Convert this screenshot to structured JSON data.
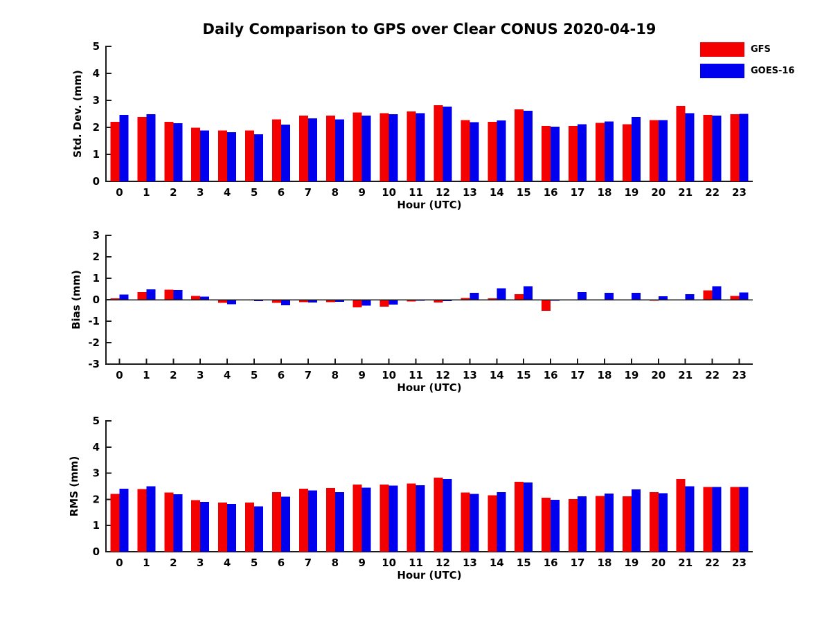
{
  "title": "Daily Comparison to GPS over Clear CONUS 2020-04-19",
  "legend": {
    "position": "top-right",
    "items": [
      {
        "label": "GFS",
        "color": "#f40000"
      },
      {
        "label": "GOES-16",
        "color": "#0000ee"
      }
    ]
  },
  "colors": {
    "gfs": "#f40000",
    "goes16": "#0000ee",
    "axis": "#1a1a1a",
    "background": "#ffffff"
  },
  "chart_data": [
    {
      "type": "bar",
      "name": "std-dev",
      "ylabel": "Std. Dev. (mm)",
      "xlabel": "Hour (UTC)",
      "ylim": [
        0,
        5
      ],
      "yticks": [
        0,
        1,
        2,
        3,
        4,
        5
      ],
      "grid": false,
      "categories": [
        "0",
        "1",
        "2",
        "3",
        "4",
        "5",
        "6",
        "7",
        "8",
        "9",
        "10",
        "11",
        "12",
        "13",
        "14",
        "15",
        "16",
        "17",
        "18",
        "19",
        "20",
        "21",
        "22",
        "23"
      ],
      "series": [
        {
          "name": "GFS",
          "color": "#f40000",
          "values": [
            2.21,
            2.38,
            2.21,
            1.99,
            1.89,
            1.88,
            2.29,
            2.43,
            2.44,
            2.55,
            2.53,
            2.59,
            2.82,
            2.27,
            2.21,
            2.67,
            2.05,
            2.05,
            2.17,
            2.12,
            2.27,
            2.79,
            2.46,
            2.49
          ]
        },
        {
          "name": "GOES-16",
          "color": "#0000ee",
          "values": [
            2.46,
            2.49,
            2.15,
            1.88,
            1.82,
            1.75,
            2.1,
            2.33,
            2.29,
            2.44,
            2.49,
            2.53,
            2.77,
            2.19,
            2.26,
            2.62,
            2.02,
            2.12,
            2.22,
            2.38,
            2.27,
            2.53,
            2.43,
            2.5
          ]
        }
      ]
    },
    {
      "type": "bar",
      "name": "bias",
      "ylabel": "Bias (mm)",
      "xlabel": "Hour (UTC)",
      "ylim": [
        -3,
        3
      ],
      "yticks": [
        -3,
        -2,
        -1,
        0,
        1,
        2,
        3
      ],
      "zero_line": true,
      "grid": false,
      "categories": [
        "0",
        "1",
        "2",
        "3",
        "4",
        "5",
        "6",
        "7",
        "8",
        "9",
        "10",
        "11",
        "12",
        "13",
        "14",
        "15",
        "16",
        "17",
        "18",
        "19",
        "20",
        "21",
        "22",
        "23"
      ],
      "series": [
        {
          "name": "GFS",
          "color": "#f40000",
          "values": [
            0.07,
            0.35,
            0.47,
            0.18,
            -0.14,
            -0.02,
            -0.15,
            -0.12,
            -0.12,
            -0.36,
            -0.32,
            -0.08,
            -0.13,
            0.08,
            0.06,
            0.26,
            -0.52,
            -0.04,
            -0.02,
            -0.02,
            -0.05,
            -0.04,
            0.44,
            0.18
          ]
        },
        {
          "name": "GOES-16",
          "color": "#0000ee",
          "values": [
            0.25,
            0.49,
            0.45,
            0.14,
            -0.21,
            -0.06,
            -0.25,
            -0.13,
            -0.1,
            -0.28,
            -0.22,
            -0.05,
            -0.06,
            0.32,
            0.53,
            0.63,
            -0.05,
            0.36,
            0.32,
            0.33,
            0.16,
            0.26,
            0.63,
            0.34
          ]
        }
      ]
    },
    {
      "type": "bar",
      "name": "rms",
      "ylabel": "RMS (mm)",
      "xlabel": "Hour (UTC)",
      "ylim": [
        0,
        5
      ],
      "yticks": [
        0,
        1,
        2,
        3,
        4,
        5
      ],
      "grid": false,
      "categories": [
        "0",
        "1",
        "2",
        "3",
        "4",
        "5",
        "6",
        "7",
        "8",
        "9",
        "10",
        "11",
        "12",
        "13",
        "14",
        "15",
        "16",
        "17",
        "18",
        "19",
        "20",
        "21",
        "22",
        "23"
      ],
      "series": [
        {
          "name": "GFS",
          "color": "#f40000",
          "values": [
            2.21,
            2.39,
            2.26,
            1.97,
            1.88,
            1.88,
            2.28,
            2.41,
            2.43,
            2.57,
            2.57,
            2.6,
            2.83,
            2.26,
            2.16,
            2.67,
            2.07,
            2.01,
            2.13,
            2.11,
            2.28,
            2.78,
            2.48,
            2.48
          ]
        },
        {
          "name": "GOES-16",
          "color": "#0000ee",
          "values": [
            2.41,
            2.5,
            2.19,
            1.9,
            1.83,
            1.73,
            2.1,
            2.34,
            2.28,
            2.45,
            2.52,
            2.54,
            2.78,
            2.21,
            2.28,
            2.65,
            1.98,
            2.12,
            2.22,
            2.38,
            2.24,
            2.5,
            2.48,
            2.48
          ]
        }
      ]
    }
  ]
}
